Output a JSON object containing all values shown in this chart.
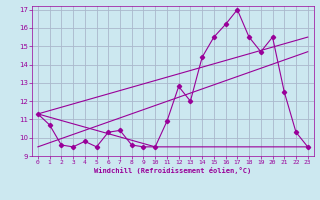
{
  "xlabel": "Windchill (Refroidissement éolien,°C)",
  "bg_color": "#cce8f0",
  "grid_color": "#aab8cc",
  "line_color": "#990099",
  "xlim": [
    -0.5,
    23.5
  ],
  "ylim": [
    9,
    17.2
  ],
  "yticks": [
    9,
    10,
    11,
    12,
    13,
    14,
    15,
    16,
    17
  ],
  "xticks": [
    0,
    1,
    2,
    3,
    4,
    5,
    6,
    7,
    8,
    9,
    10,
    11,
    12,
    13,
    14,
    15,
    16,
    17,
    18,
    19,
    20,
    21,
    22,
    23
  ],
  "series1_x": [
    0,
    1,
    2,
    3,
    4,
    5,
    6,
    7,
    8,
    9,
    10,
    11,
    12,
    13,
    14,
    15,
    16,
    17,
    18,
    19,
    20,
    21,
    22,
    23
  ],
  "series1_y": [
    11.3,
    10.7,
    9.6,
    9.5,
    9.8,
    9.5,
    10.3,
    10.4,
    9.6,
    9.5,
    9.5,
    10.9,
    12.8,
    12.0,
    14.4,
    15.5,
    16.2,
    17.0,
    15.5,
    14.7,
    15.5,
    12.5,
    10.3,
    9.5
  ],
  "series2_x": [
    0,
    10,
    23
  ],
  "series2_y": [
    11.3,
    9.5,
    9.5
  ],
  "series3_x": [
    0,
    23
  ],
  "series3_y": [
    11.3,
    15.5
  ],
  "series4_x": [
    0,
    23
  ],
  "series4_y": [
    9.5,
    14.7
  ]
}
